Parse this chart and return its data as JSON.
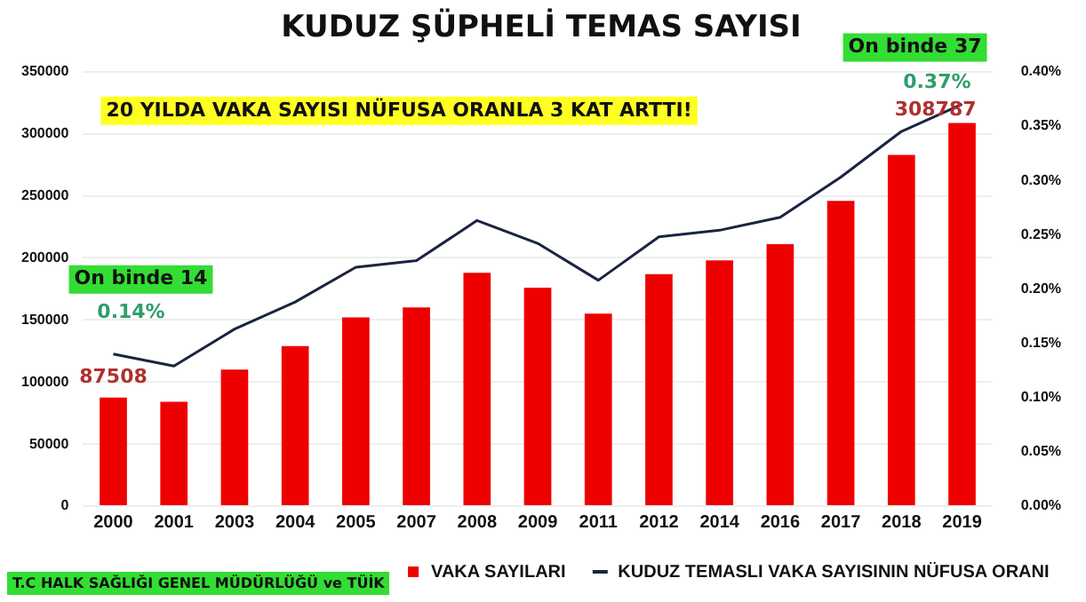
{
  "chart_data": {
    "type": "bar",
    "title": "KUDUZ ŞÜPHELİ TEMAS SAYISI",
    "categories": [
      "2000",
      "2001",
      "2003",
      "2004",
      "2005",
      "2007",
      "2008",
      "2009",
      "2011",
      "2012",
      "2014",
      "2016",
      "2017",
      "2018",
      "2019"
    ],
    "series": [
      {
        "name": "VAKA SAYILARI",
        "color": "#ee0000",
        "values": [
          87508,
          84000,
          110000,
          129000,
          152000,
          160000,
          188000,
          176000,
          155000,
          187000,
          198000,
          211000,
          246000,
          283000,
          308787
        ],
        "value_labels": [
          "87508",
          null,
          null,
          null,
          null,
          null,
          null,
          null,
          null,
          null,
          null,
          null,
          null,
          null,
          "308787"
        ]
      },
      {
        "name": "KUDUZ TEMASLI VAKA SAYISININ NÜFUSA ORANI",
        "type": "line",
        "axis": "y2",
        "color": "#1a2440",
        "values": [
          0.14,
          0.129,
          0.163,
          0.188,
          0.22,
          0.226,
          0.263,
          0.242,
          0.208,
          0.248,
          0.254,
          0.266,
          0.303,
          0.345,
          0.37
        ],
        "value_labels": [
          "0.14%",
          null,
          null,
          null,
          null,
          null,
          null,
          null,
          null,
          null,
          null,
          null,
          null,
          null,
          "0.37%"
        ]
      }
    ],
    "ylim": [
      0,
      350000
    ],
    "yticks": [
      0,
      50000,
      100000,
      150000,
      200000,
      250000,
      300000,
      350000
    ],
    "y2lim": [
      0,
      0.4
    ],
    "y2ticks": [
      {
        "value": 0,
        "label": "0.00%"
      },
      {
        "value": 0.05,
        "label": "0.05%"
      },
      {
        "value": 0.1,
        "label": "0.10%"
      },
      {
        "value": 0.15,
        "label": "0.15%"
      },
      {
        "value": 0.2,
        "label": "0.20%"
      },
      {
        "value": 0.25,
        "label": "0.25%"
      },
      {
        "value": 0.3,
        "label": "0.30%"
      },
      {
        "value": 0.35,
        "label": "0.35%"
      },
      {
        "value": 0.4,
        "label": "0.40%"
      }
    ],
    "grid": "y",
    "legend": "bottom",
    "marker": "none",
    "line_style": "solid",
    "annotations": [
      "20 YILDA VAKA SAYISI NÜFUSA ORANLA 3 KAT ARTTI!",
      "On binde 14",
      "On binde 37",
      "T.C HALK SAĞLIĞI GENEL MÜDÜRLÜĞÜ  ve TÜİK"
    ]
  }
}
